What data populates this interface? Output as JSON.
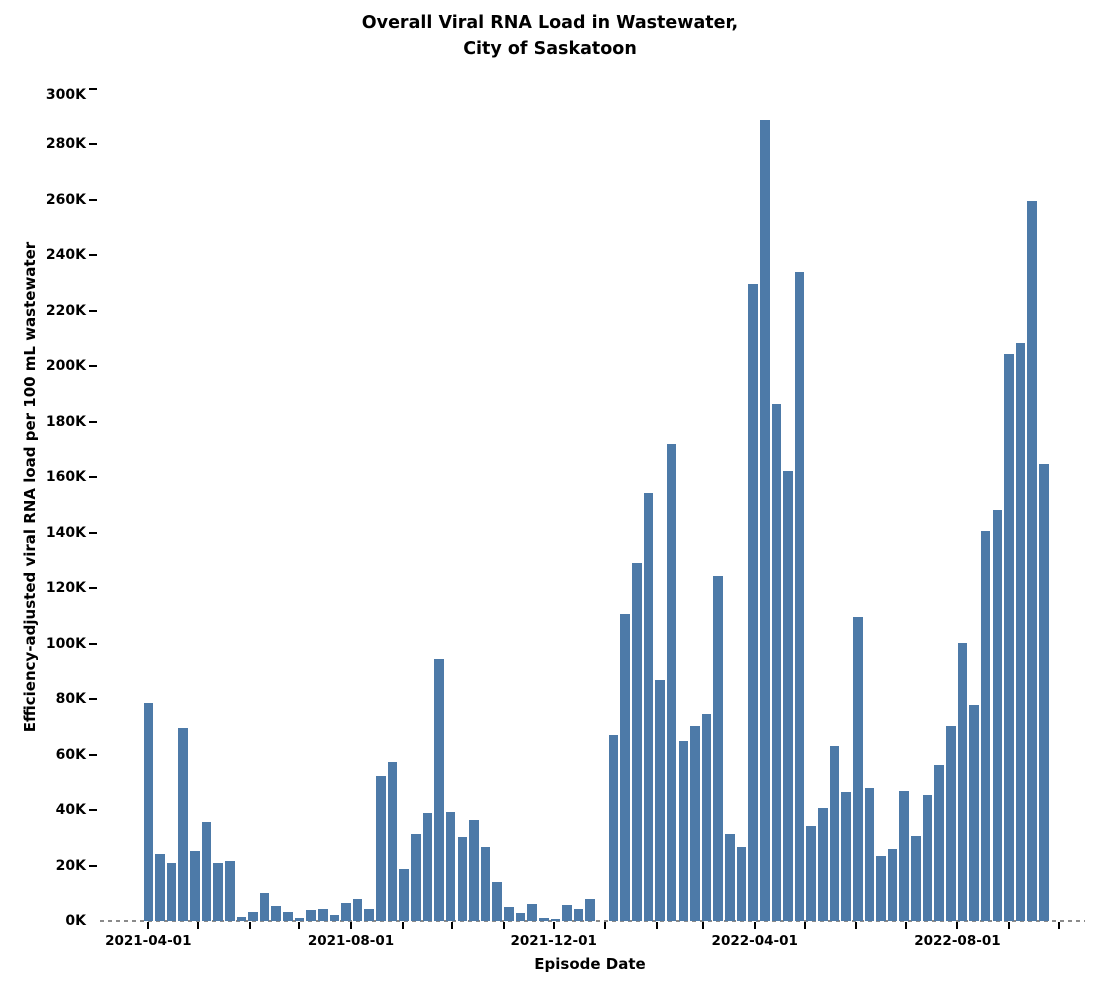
{
  "title": {
    "line1": "Overall Viral RNA Load in Wastewater,",
    "line2": "City of Saskatoon"
  },
  "axes": {
    "y_label": "Efficiency-adjusted viral RNA load per 100 mL wastewater",
    "x_label": "Episode Date",
    "y_tick_labels": [
      "0K",
      "20K",
      "40K",
      "60K",
      "80K",
      "100K",
      "120K",
      "140K",
      "160K",
      "180K",
      "200K",
      "220K",
      "240K",
      "260K",
      "280K",
      "300K"
    ],
    "x_major_tick_labels": [
      "2021-04-01",
      "2021-08-01",
      "2021-12-01",
      "2022-04-01",
      "2022-08-01"
    ]
  },
  "chart_data": {
    "type": "bar",
    "title": "Overall Viral RNA Load in Wastewater, City of Saskatoon",
    "xlabel": "Episode Date",
    "ylabel": "Efficiency-adjusted viral RNA load per 100 mL wastewater",
    "unit": "viral RNA load per 100 mL wastewater, in thousands (K)",
    "ylim_k": [
      0,
      300
    ],
    "y_tick_step_k": 20,
    "x_axis_visible_range": [
      "2021-03-03",
      "2022-10-17"
    ],
    "x_minor_ticks": "monthly",
    "grid": false,
    "legend": "none",
    "bar_color": "#4d7aa8",
    "baseline_style": "dashed",
    "x_major_tick_labels": [
      "2021-04-01",
      "2021-08-01",
      "2021-12-01",
      "2022-04-01",
      "2022-08-01"
    ],
    "x_dates": [
      "2021-04-01",
      "2021-04-08",
      "2021-04-15",
      "2021-04-22",
      "2021-04-29",
      "2021-05-06",
      "2021-05-13",
      "2021-05-20",
      "2021-05-27",
      "2021-06-03",
      "2021-06-10",
      "2021-06-17",
      "2021-06-24",
      "2021-07-01",
      "2021-07-08",
      "2021-07-15",
      "2021-07-22",
      "2021-07-29",
      "2021-08-05",
      "2021-08-12",
      "2021-08-19",
      "2021-08-26",
      "2021-09-02",
      "2021-09-09",
      "2021-09-16",
      "2021-09-23",
      "2021-09-30",
      "2021-10-07",
      "2021-10-14",
      "2021-10-21",
      "2021-10-28",
      "2021-11-04",
      "2021-11-11",
      "2021-11-18",
      "2021-11-25",
      "2021-12-02",
      "2021-12-09",
      "2021-12-16",
      "2021-12-23",
      "2022-01-06",
      "2022-01-13",
      "2022-01-20",
      "2022-01-27",
      "2022-02-03",
      "2022-02-10",
      "2022-02-17",
      "2022-02-24",
      "2022-03-03",
      "2022-03-10",
      "2022-03-17",
      "2022-03-24",
      "2022-03-31",
      "2022-04-07",
      "2022-04-14",
      "2022-04-21",
      "2022-04-28",
      "2022-05-05",
      "2022-05-12",
      "2022-05-19",
      "2022-05-26",
      "2022-06-02",
      "2022-06-09",
      "2022-06-16",
      "2022-06-23",
      "2022-06-30",
      "2022-07-07",
      "2022-07-14",
      "2022-07-21",
      "2022-07-28",
      "2022-08-04",
      "2022-08-11",
      "2022-08-18",
      "2022-08-25",
      "2022-09-01",
      "2022-09-08",
      "2022-09-15",
      "2022-09-22"
    ],
    "values_k": [
      78.7,
      24.0,
      20.9,
      69.7,
      25.2,
      35.6,
      20.9,
      21.8,
      1.6,
      3.1,
      10.2,
      5.4,
      3.4,
      1.2,
      4.0,
      4.3,
      2.0,
      6.5,
      7.8,
      4.2,
      52.4,
      57.3,
      18.9,
      31.3,
      38.8,
      94.3,
      39.2,
      30.1,
      36.3,
      26.5,
      13.9,
      5.2,
      3.0,
      6.1,
      1.0,
      0.7,
      5.8,
      4.2,
      8.1,
      67.2,
      110.8,
      128.9,
      154.3,
      86.9,
      171.8,
      64.9,
      70.4,
      74.5,
      124.4,
      31.2,
      26.8,
      229.5,
      288.5,
      186.2,
      162.3,
      233.8,
      34.1,
      40.8,
      63.0,
      46.6,
      109.4,
      47.8,
      23.4,
      25.8,
      46.8,
      30.6,
      45.5,
      56.2,
      70.3,
      100.3,
      77.8,
      140.6,
      148.2,
      204.2,
      208.3,
      259.5,
      164.8
    ]
  }
}
